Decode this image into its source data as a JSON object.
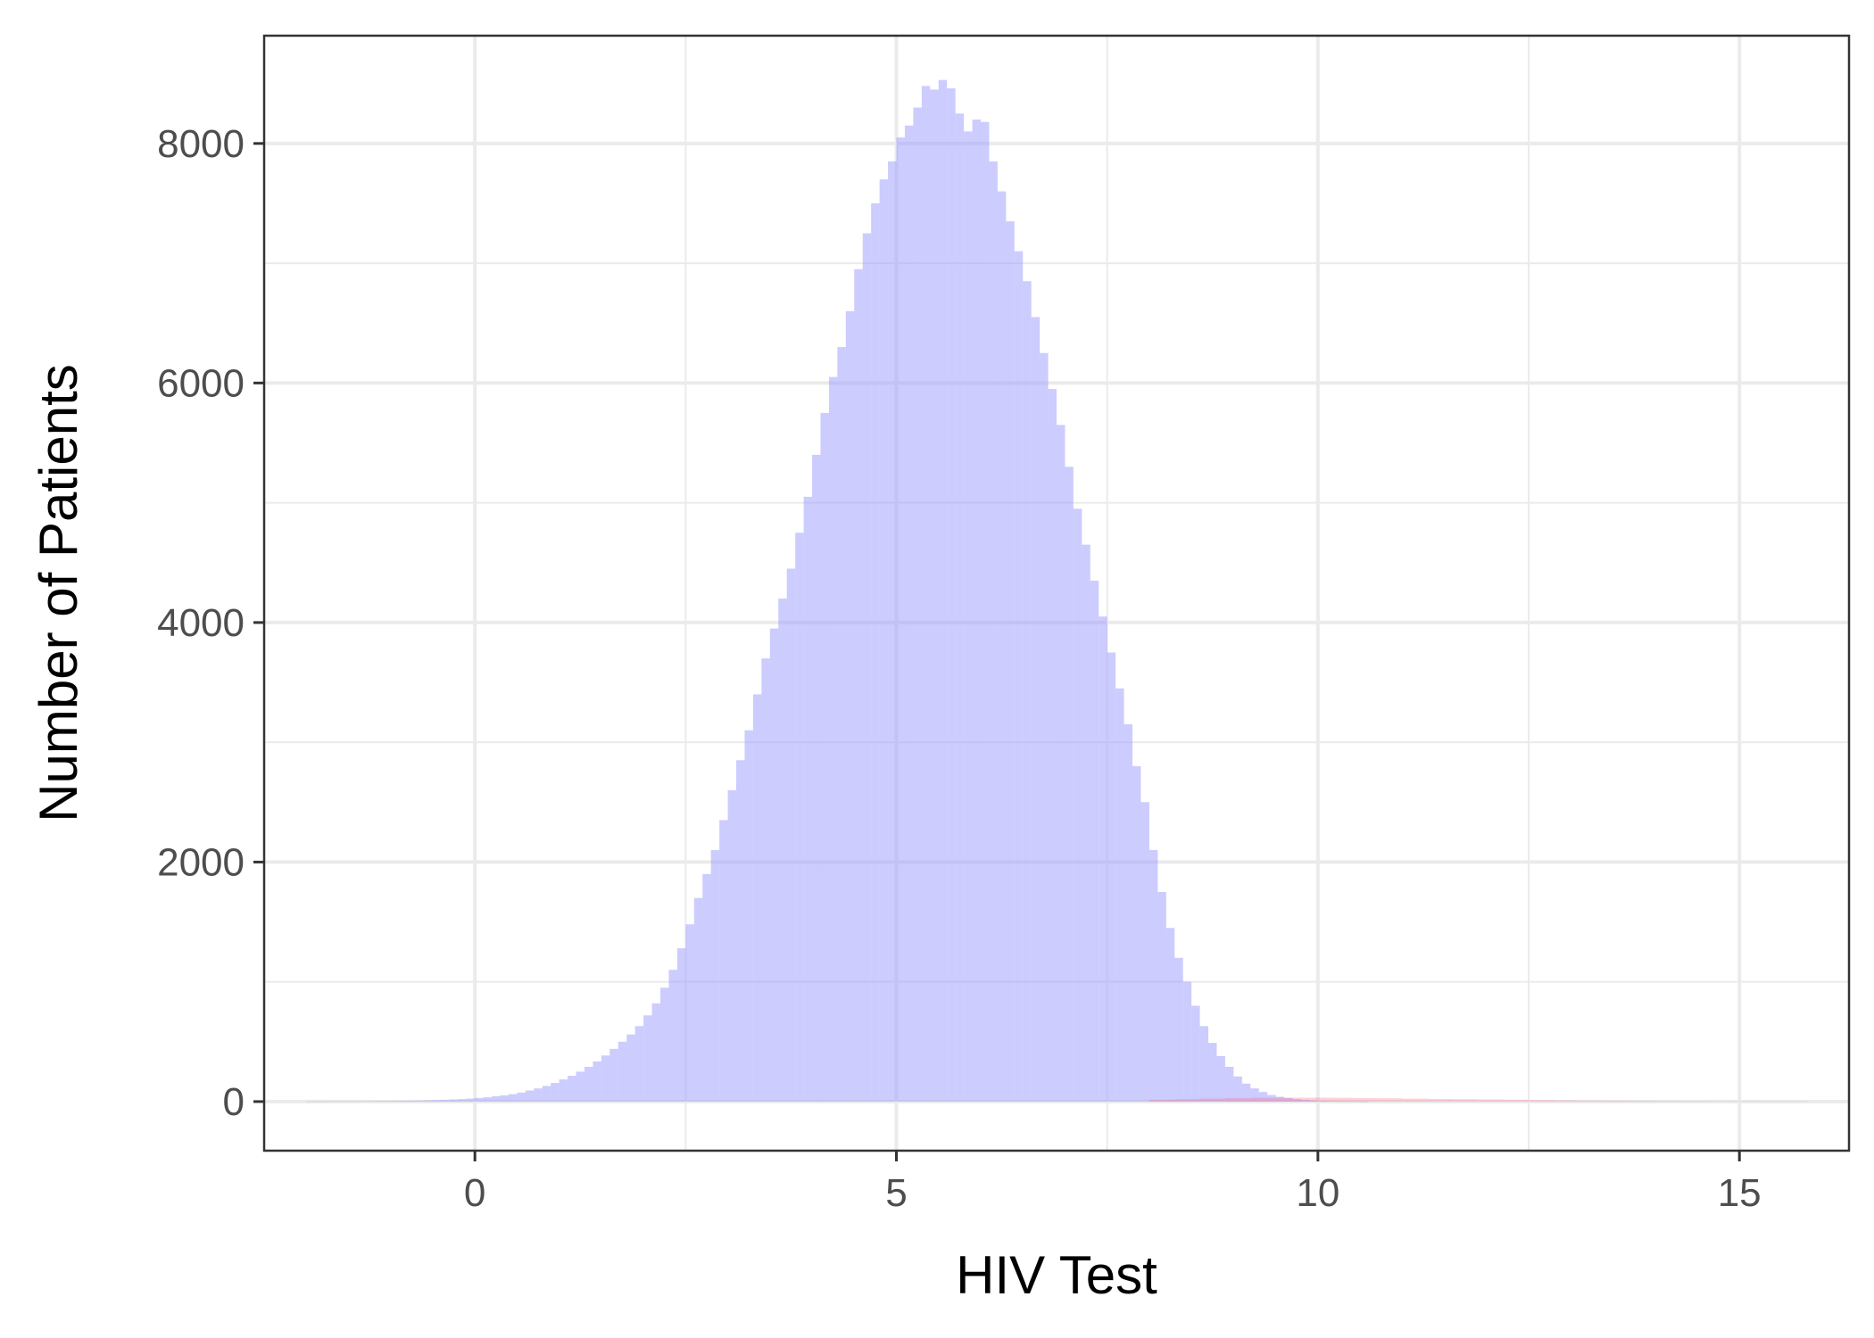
{
  "chart_data": {
    "type": "bar",
    "subtype": "histogram",
    "title": "",
    "xlabel": "HIV Test",
    "ylabel": "Number of Patients",
    "xlim": [
      -2.5,
      16.3
    ],
    "ylim": [
      -410,
      8900
    ],
    "x_ticks": [
      0,
      5,
      10,
      15
    ],
    "y_ticks": [
      0,
      2000,
      4000,
      6000,
      8000
    ],
    "grid": true,
    "legend": "none",
    "bin_width": 0.1,
    "series": [
      {
        "color": "#9999ff",
        "opacity": 0.5,
        "x": [
          -2.0,
          -1.9,
          -1.8,
          -1.7,
          -1.6,
          -1.5,
          -1.4,
          -1.3,
          -1.2,
          -1.1,
          -1.0,
          -0.9,
          -0.8,
          -0.7,
          -0.6,
          -0.5,
          -0.4,
          -0.3,
          -0.2,
          -0.1,
          0.0,
          0.1,
          0.2,
          0.3,
          0.4,
          0.5,
          0.6,
          0.7,
          0.8,
          0.9,
          1.0,
          1.1,
          1.2,
          1.3,
          1.4,
          1.5,
          1.6,
          1.7,
          1.8,
          1.9,
          2.0,
          2.1,
          2.2,
          2.3,
          2.4,
          2.5,
          2.6,
          2.7,
          2.8,
          2.9,
          3.0,
          3.1,
          3.2,
          3.3,
          3.4,
          3.5,
          3.6,
          3.7,
          3.8,
          3.9,
          4.0,
          4.1,
          4.2,
          4.3,
          4.4,
          4.5,
          4.6,
          4.7,
          4.8,
          4.9,
          5.0,
          5.1,
          5.2,
          5.3,
          5.4,
          5.5,
          5.6,
          5.7,
          5.8,
          5.9,
          6.0,
          6.1,
          6.2,
          6.3,
          6.4,
          6.5,
          6.6,
          6.7,
          6.8,
          6.9,
          7.0,
          7.1,
          7.2,
          7.3,
          7.4,
          7.5,
          7.6,
          7.7,
          7.8,
          7.9,
          8.0,
          8.1,
          8.2,
          8.3,
          8.4,
          8.5,
          8.6,
          8.7,
          8.8,
          8.9,
          9.0,
          9.1,
          9.2,
          9.3,
          9.4,
          9.5,
          9.6,
          9.7,
          9.8,
          9.9,
          10.0,
          10.1,
          10.2,
          10.3,
          10.4,
          10.5
        ],
        "values": [
          2,
          2,
          2,
          3,
          3,
          3,
          4,
          4,
          5,
          5,
          6,
          7,
          8,
          9,
          11,
          13,
          15,
          18,
          21,
          25,
          30,
          36,
          44,
          52,
          62,
          75,
          92,
          110,
          130,
          155,
          185,
          215,
          250,
          290,
          335,
          385,
          440,
          500,
          560,
          630,
          720,
          820,
          950,
          1100,
          1280,
          1480,
          1700,
          1900,
          2100,
          2350,
          2600,
          2850,
          3100,
          3400,
          3700,
          3950,
          4200,
          4450,
          4750,
          5050,
          5400,
          5750,
          6050,
          6300,
          6600,
          6950,
          7250,
          7500,
          7700,
          7850,
          8050,
          8150,
          8300,
          8480,
          8450,
          8530,
          8460,
          8250,
          8100,
          8200,
          8180,
          7850,
          7600,
          7350,
          7100,
          6850,
          6550,
          6250,
          5950,
          5650,
          5300,
          4950,
          4650,
          4350,
          4050,
          3750,
          3450,
          3150,
          2800,
          2500,
          2100,
          1750,
          1450,
          1200,
          1000,
          800,
          630,
          490,
          380,
          290,
          210,
          150,
          110,
          80,
          55,
          40,
          30,
          20,
          15,
          10,
          6,
          4,
          3,
          2,
          2,
          1
        ]
      },
      {
        "color": "#ff6680",
        "opacity": 0.3,
        "x": [
          8.0,
          8.3,
          8.6,
          8.9,
          9.2,
          9.5,
          9.8,
          10.1,
          10.4,
          10.7,
          11.0,
          11.3,
          11.6,
          11.9,
          12.2,
          12.5,
          12.8,
          13.1,
          13.4,
          13.7,
          14.0,
          14.3,
          14.6,
          14.9,
          15.2,
          15.5
        ],
        "values": [
          15,
          20,
          25,
          30,
          32,
          33,
          33,
          32,
          30,
          28,
          25,
          22,
          20,
          18,
          15,
          13,
          11,
          9,
          8,
          7,
          6,
          5,
          4,
          3,
          2,
          2
        ]
      }
    ]
  }
}
